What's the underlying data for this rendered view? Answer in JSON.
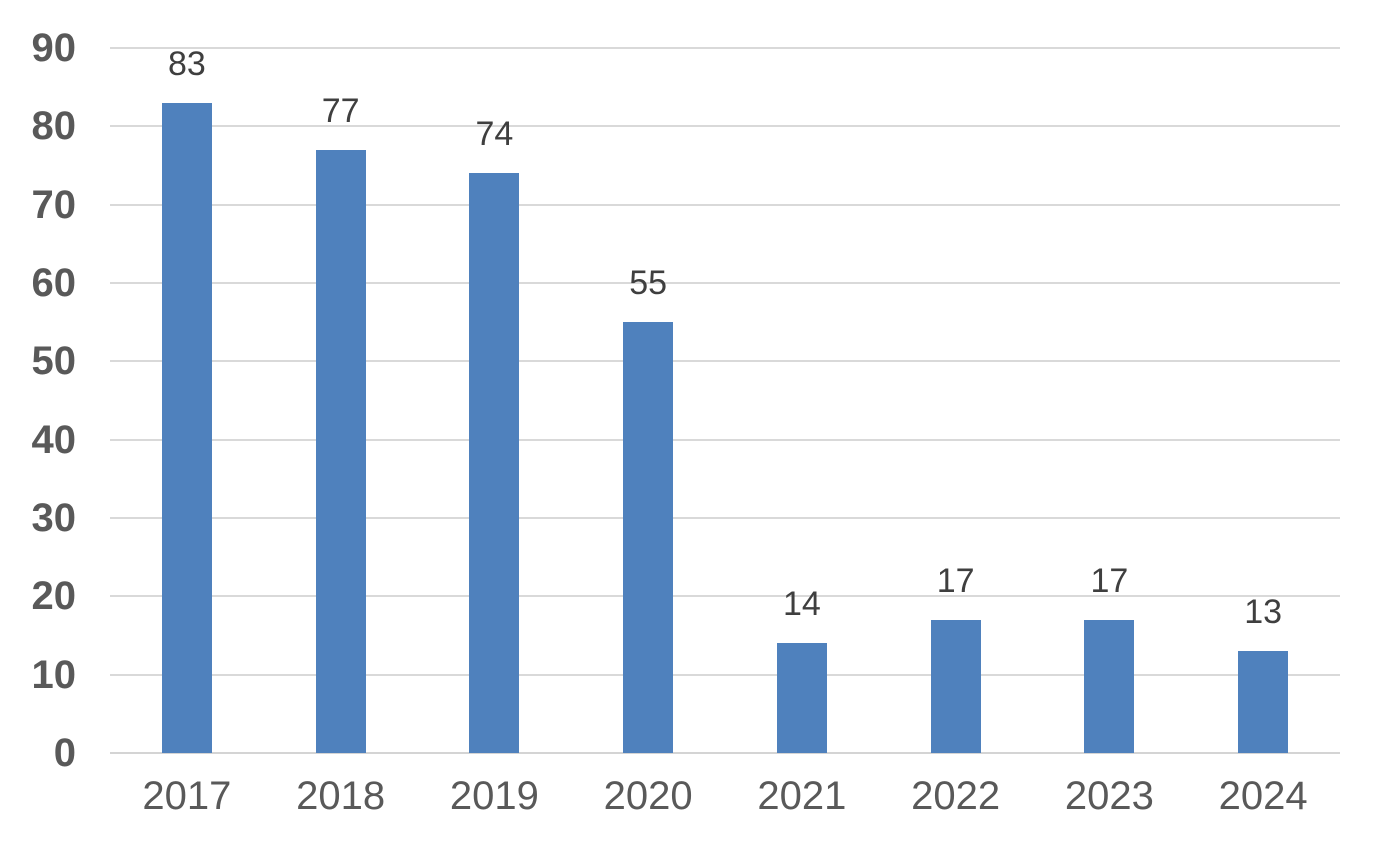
{
  "chart_data": {
    "type": "bar",
    "title": "",
    "xlabel": "",
    "ylabel": "",
    "categories": [
      "2017",
      "2018",
      "2019",
      "2020",
      "2021",
      "2022",
      "2023",
      "2024"
    ],
    "values": [
      83,
      77,
      74,
      55,
      14,
      17,
      17,
      13
    ],
    "data_labels": [
      "83",
      "77",
      "74",
      "55",
      "14",
      "17",
      "17",
      "13"
    ],
    "ylim": [
      0,
      90
    ],
    "yticks": [
      0,
      10,
      20,
      30,
      40,
      50,
      60,
      70,
      80,
      90
    ],
    "ytick_labels": [
      "0",
      "10",
      "20",
      "30",
      "40",
      "50",
      "60",
      "70",
      "80",
      "90"
    ],
    "grid": "horizontal",
    "legend_position": "none",
    "bar_color": "#4F81BD",
    "gridline_color": "#D9D9D9",
    "axis_line_color": "#D4D4D4",
    "ytick_label_color": "#595959",
    "xtick_label_color": "#595959",
    "data_label_color": "#3F3F3F",
    "background_color": "#FFFFFF"
  }
}
